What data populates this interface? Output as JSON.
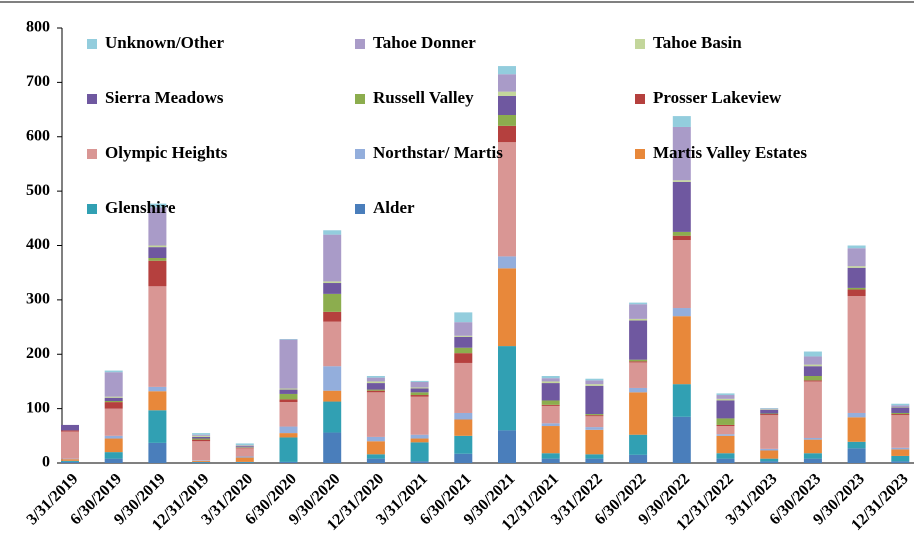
{
  "chart_data": {
    "type": "stacked_bar",
    "categories": [
      "3/31/2019",
      "6/30/2019",
      "9/30/2019",
      "12/31/2019",
      "3/31/2020",
      "6/30/2020",
      "9/30/2020",
      "12/31/2020",
      "3/31/2021",
      "6/30/2021",
      "9/30/2021",
      "12/31/2021",
      "3/31/2022",
      "6/30/2022",
      "9/30/2022",
      "12/31/2022",
      "3/31/2023",
      "6/30/2023",
      "9/30/2023",
      "12/31/2023"
    ],
    "series": [
      {
        "name": "Alder",
        "color": "#4a7ebb",
        "values": [
          2,
          8,
          37,
          1,
          1,
          2,
          56,
          8,
          3,
          17,
          60,
          8,
          8,
          15,
          85,
          8,
          3,
          8,
          27,
          3
        ]
      },
      {
        "name": "Glenshire",
        "color": "#31a0b3",
        "values": [
          2,
          12,
          60,
          1,
          1,
          45,
          57,
          8,
          35,
          33,
          155,
          10,
          8,
          37,
          60,
          10,
          5,
          10,
          12,
          10
        ]
      },
      {
        "name": "Martis Valley Estates",
        "color": "#e8883a",
        "values": [
          3,
          25,
          35,
          2,
          8,
          8,
          20,
          24,
          7,
          30,
          143,
          50,
          45,
          78,
          125,
          32,
          15,
          25,
          45,
          12
        ]
      },
      {
        "name": "Northstar/ Martis",
        "color": "#93aedc",
        "values": [
          1,
          5,
          8,
          1,
          2,
          12,
          45,
          8,
          7,
          12,
          22,
          5,
          5,
          8,
          15,
          3,
          3,
          3,
          8,
          3
        ]
      },
      {
        "name": "Olympic Heights",
        "color": "#d99694",
        "values": [
          50,
          50,
          185,
          35,
          15,
          45,
          82,
          82,
          70,
          92,
          210,
          32,
          20,
          47,
          125,
          15,
          62,
          104,
          215,
          60
        ]
      },
      {
        "name": "Prosser Lakeview",
        "color": "#b5403e",
        "values": [
          2,
          12,
          47,
          3,
          1,
          5,
          18,
          3,
          3,
          18,
          30,
          2,
          2,
          2,
          8,
          2,
          2,
          2,
          12,
          2
        ]
      },
      {
        "name": "Russell Valley",
        "color": "#8cad4e",
        "values": [
          0,
          2,
          5,
          2,
          1,
          10,
          33,
          2,
          5,
          10,
          20,
          8,
          2,
          3,
          7,
          12,
          1,
          8,
          3,
          2
        ]
      },
      {
        "name": "Sierra Meadows",
        "color": "#6f58a0",
        "values": [
          10,
          6,
          20,
          3,
          2,
          8,
          20,
          12,
          7,
          20,
          35,
          32,
          52,
          72,
          92,
          33,
          7,
          18,
          37,
          10
        ]
      },
      {
        "name": "Tahoe Basin",
        "color": "#c3d69b",
        "values": [
          0,
          2,
          3,
          2,
          1,
          2,
          3,
          3,
          2,
          2,
          8,
          3,
          3,
          3,
          3,
          3,
          1,
          3,
          3,
          1
        ]
      },
      {
        "name": "Tahoe Donner",
        "color": "#a99bc8",
        "values": [
          0,
          45,
          70,
          2,
          1,
          90,
          86,
          7,
          10,
          25,
          32,
          6,
          7,
          27,
          98,
          7,
          1,
          15,
          33,
          3
        ]
      },
      {
        "name": "Unknown/Other",
        "color": "#93cddd",
        "values": [
          0,
          3,
          7,
          3,
          3,
          1,
          8,
          3,
          2,
          18,
          15,
          4,
          3,
          3,
          20,
          3,
          1,
          9,
          5,
          3
        ]
      }
    ],
    "ylim": [
      0,
      800
    ],
    "yticks": [
      0,
      100,
      200,
      300,
      400,
      500,
      600,
      700,
      800
    ]
  }
}
